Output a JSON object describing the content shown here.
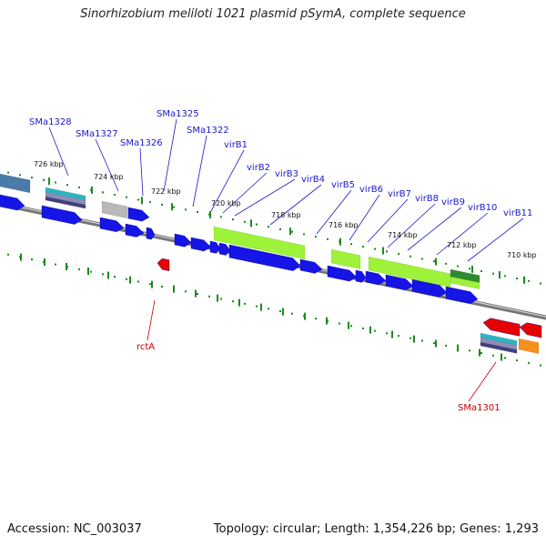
{
  "title": "Sinorhizobium meliloti 1021 plasmid pSymA, complete sequence",
  "footer": {
    "accession": "Accession: NC_003037",
    "summary": "Topology: circular; Length: 1,354,226 bp; Genes: 1,293"
  },
  "ticks": [
    "726 kbp",
    "724 kbp",
    "722 kbp",
    "720 kbp",
    "718 kbp",
    "716 kbp",
    "714 kbp",
    "712 kbp",
    "710 kbp"
  ],
  "labels_forward": [
    "SMa1328",
    "SMa1327",
    "SMa1326",
    "SMa1325",
    "SMa1322",
    "virB1",
    "virB2",
    "virB3",
    "virB4",
    "virB5",
    "virB6",
    "virB7",
    "virB8",
    "virB9",
    "virB10",
    "virB11"
  ],
  "labels_reverse": [
    "rctA",
    "SMa1301"
  ],
  "colors": {
    "cds_forward": "#1515e6",
    "cds_reverse": "#e60000",
    "gene_bar": "#9ef23a",
    "backbone": "#7a7a7a",
    "tick": "#1a8a1a",
    "label_forward": "#1a1acc",
    "label_reverse": "#cc0000"
  }
}
